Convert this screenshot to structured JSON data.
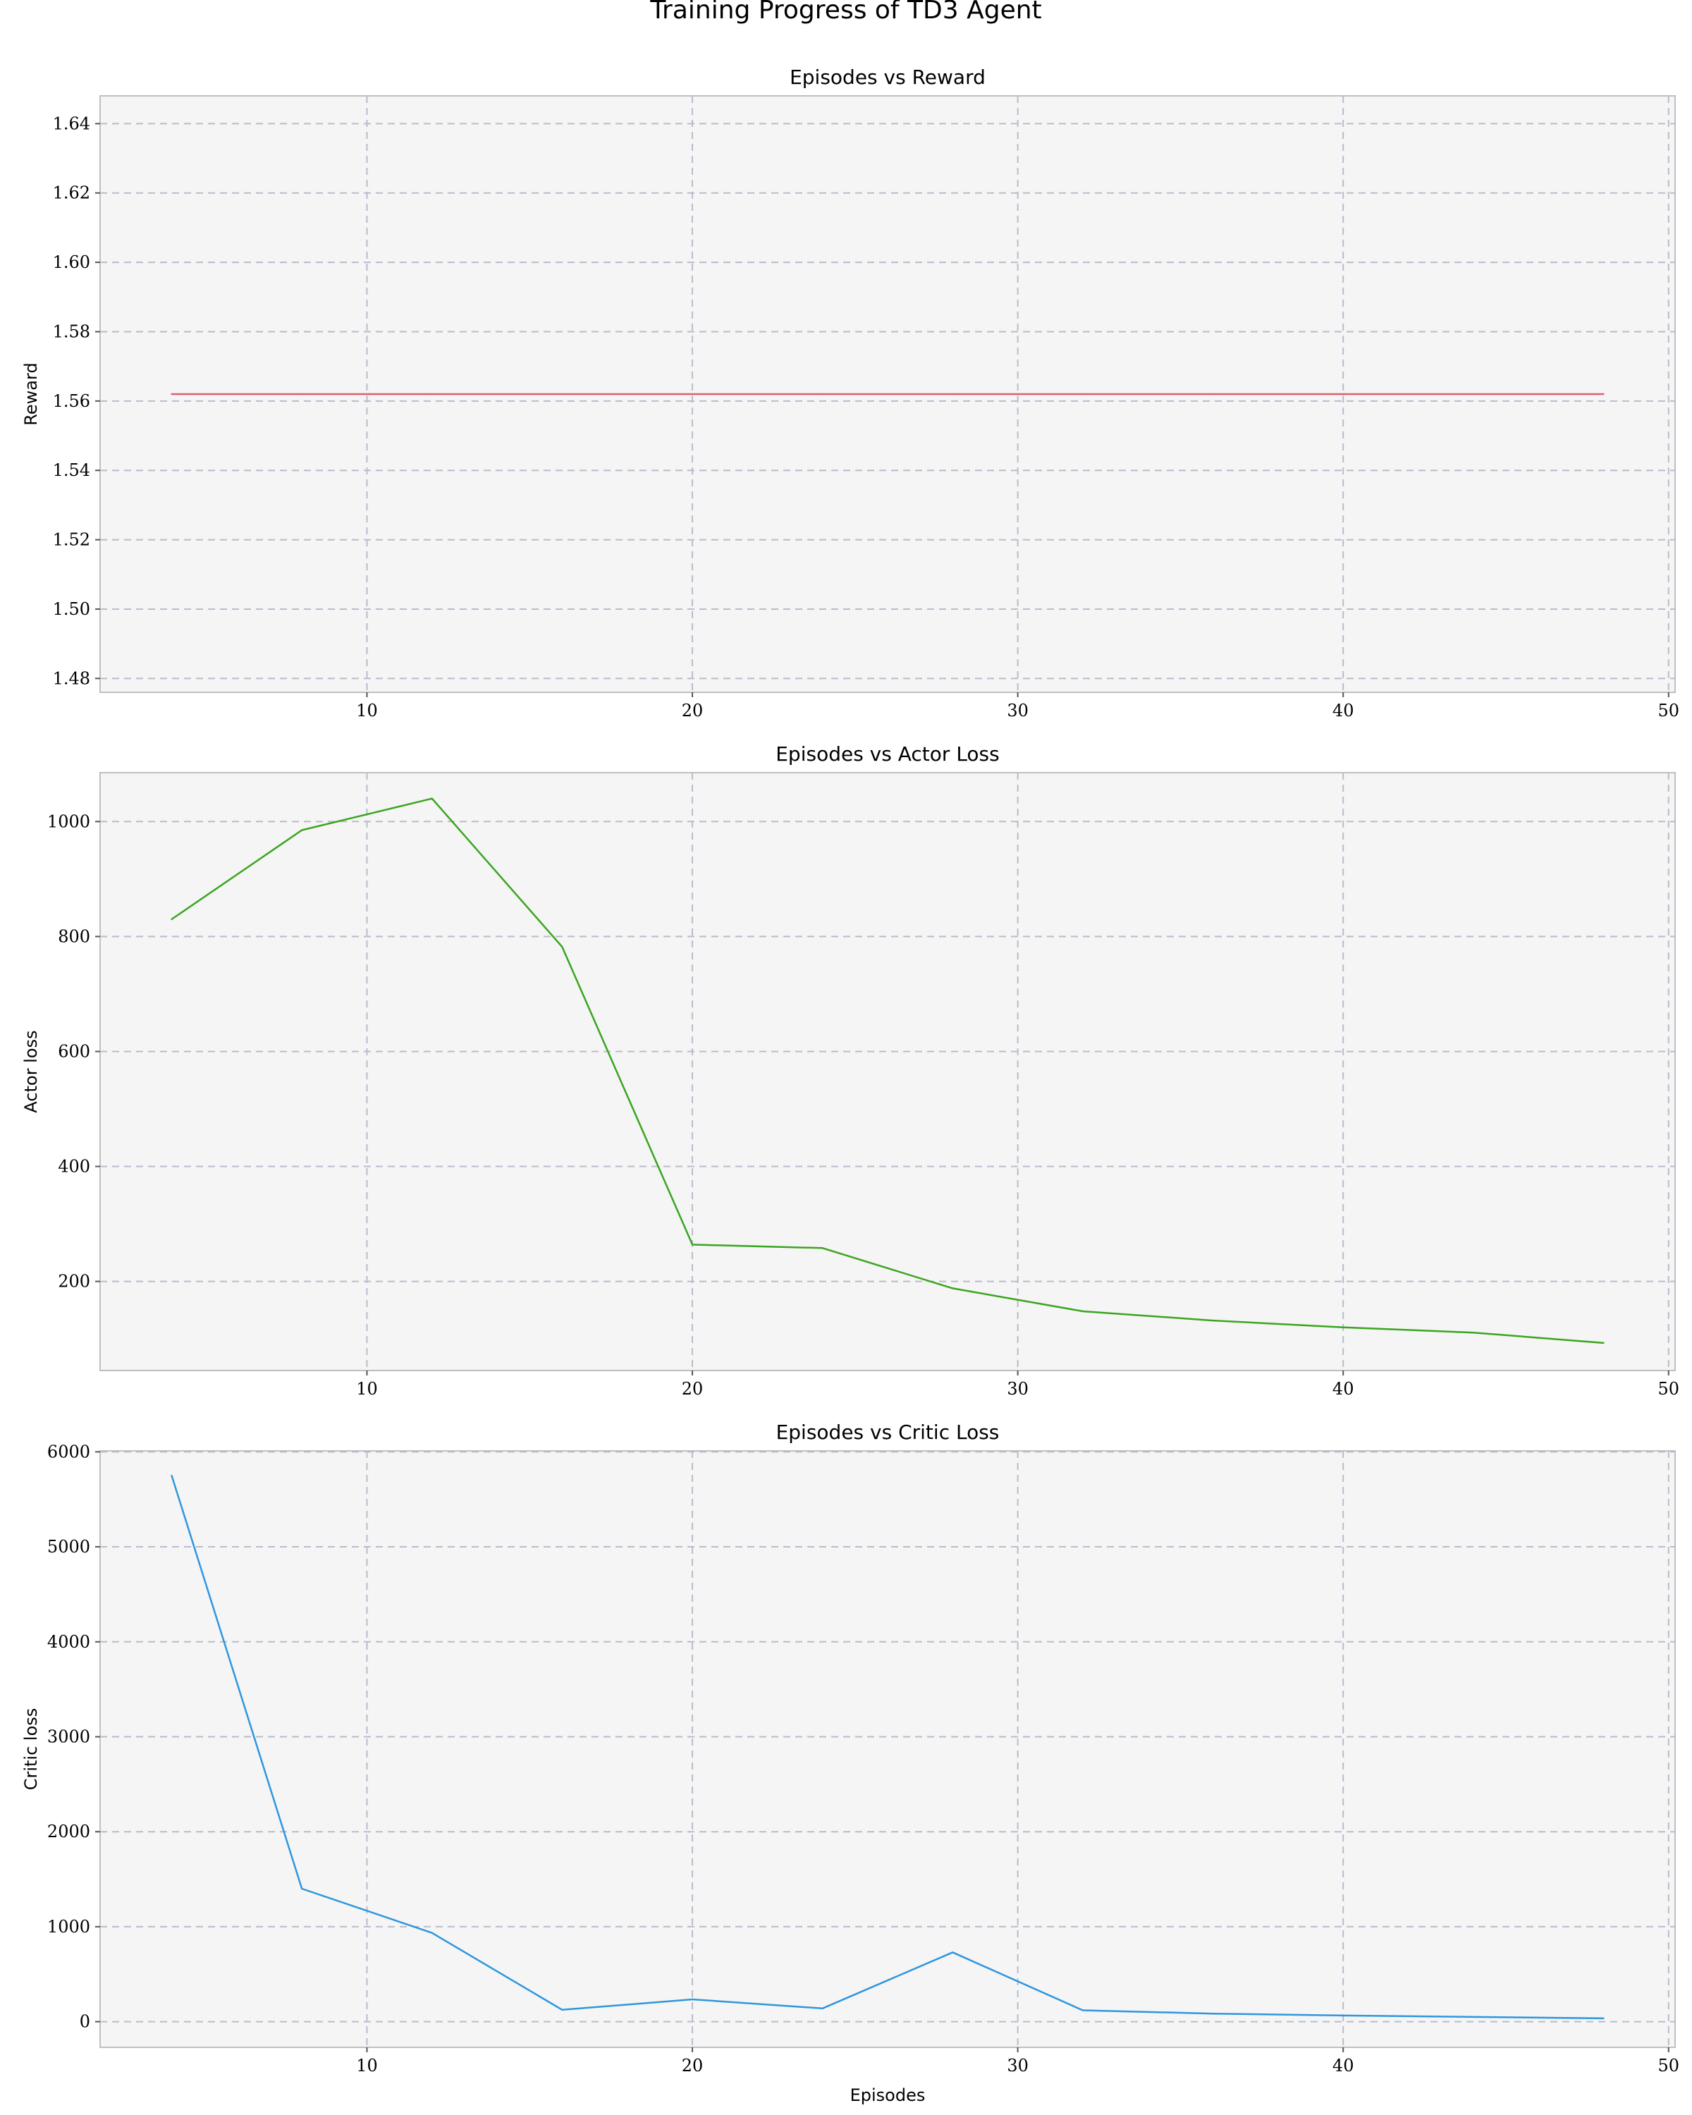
{
  "figure": {
    "suptitle": "Training Progress of TD3 Agent"
  },
  "chart_data": [
    {
      "type": "line",
      "title": "Episodes vs Reward",
      "xlabel": "",
      "ylabel": "Reward",
      "xlim": [
        1.8,
        50.2
      ],
      "ylim": [
        1.476,
        1.648
      ],
      "xticks": [
        10,
        20,
        30,
        40,
        50
      ],
      "yticks": [
        1.48,
        1.5,
        1.52,
        1.54,
        1.56,
        1.58,
        1.6,
        1.62,
        1.64
      ],
      "ytick_decimals": 2,
      "grid": true,
      "series": [
        {
          "color": "#e05c74",
          "x": [
            4,
            8,
            12,
            16,
            20,
            24,
            28,
            32,
            36,
            40,
            44,
            48
          ],
          "y": [
            1.562,
            1.562,
            1.562,
            1.562,
            1.562,
            1.562,
            1.562,
            1.562,
            1.562,
            1.562,
            1.562,
            1.562
          ]
        }
      ]
    },
    {
      "type": "line",
      "title": "Episodes vs Actor Loss",
      "xlabel": "",
      "ylabel": "Actor loss",
      "xlim": [
        1.8,
        50.2
      ],
      "ylim": [
        45,
        1085
      ],
      "xticks": [
        10,
        20,
        30,
        40,
        50
      ],
      "yticks": [
        200,
        400,
        600,
        800,
        1000
      ],
      "ytick_decimals": 0,
      "grid": true,
      "series": [
        {
          "color": "#3aa51f",
          "x": [
            4,
            8,
            12,
            16,
            20,
            24,
            28,
            32,
            36,
            40,
            44,
            48
          ],
          "y": [
            830,
            985,
            1040,
            782,
            264,
            258,
            188,
            148,
            132,
            120,
            111,
            93
          ]
        }
      ]
    },
    {
      "type": "line",
      "title": "Episodes vs Critic Loss",
      "xlabel": "Episodes",
      "ylabel": "Critic loss",
      "xlim": [
        1.8,
        50.2
      ],
      "ylim": [
        -270,
        6010
      ],
      "xticks": [
        10,
        20,
        30,
        40,
        50
      ],
      "yticks": [
        0,
        1000,
        2000,
        3000,
        4000,
        5000,
        6000
      ],
      "ytick_decimals": 0,
      "grid": true,
      "series": [
        {
          "color": "#2f96de",
          "x": [
            4,
            8,
            12,
            16,
            20,
            24,
            28,
            32,
            36,
            40,
            44,
            48
          ],
          "y": [
            5750,
            1400,
            935,
            125,
            235,
            140,
            730,
            120,
            85,
            65,
            50,
            35
          ]
        }
      ]
    }
  ]
}
